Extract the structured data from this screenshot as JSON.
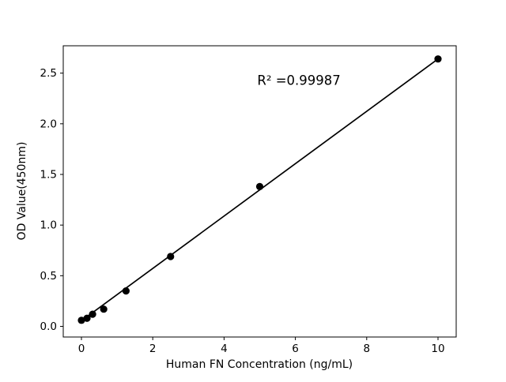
{
  "figure": {
    "background": "#ffffff"
  },
  "chart_data": {
    "type": "scatter",
    "title": "",
    "xlabel": "Human FN Concentration (ng/mL)",
    "ylabel": "OD Value(450nm)",
    "annotation": {
      "text": "R² =0.99987",
      "x": 6.1,
      "y": 2.43
    },
    "points": {
      "x": [
        0,
        0.156,
        0.3125,
        0.625,
        1.25,
        2.5,
        5,
        10
      ],
      "y": [
        0.06,
        0.08,
        0.12,
        0.17,
        0.35,
        0.69,
        1.38,
        2.64
      ]
    },
    "fit_line": {
      "x": [
        0,
        10
      ],
      "y": [
        0.055,
        2.64
      ]
    },
    "xlim": [
      -0.51,
      10.51
    ],
    "ylim": [
      -0.105,
      2.77
    ],
    "xtick_values": [
      0,
      2,
      4,
      6,
      8,
      10
    ],
    "xtick_labels": [
      "0",
      "2",
      "4",
      "6",
      "8",
      "10"
    ],
    "ytick_values": [
      0.0,
      0.5,
      1.0,
      1.5,
      2.0,
      2.5
    ],
    "ytick_labels": [
      "0.0",
      "0.5",
      "1.0",
      "1.5",
      "2.0",
      "2.5"
    ],
    "grid": false,
    "legend": null,
    "marker_color": "#000000",
    "line_color": "#000000",
    "axis_color": "#000000"
  }
}
